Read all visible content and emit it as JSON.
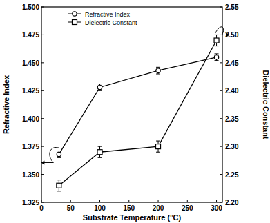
{
  "chart_data": {
    "type": "line",
    "x_label": "Substrate Temperature (°C)",
    "y_label": "Refractive Index",
    "y2_label": "Dielectric Constant",
    "x": [
      30,
      100,
      200,
      300
    ],
    "xlim": [
      0,
      310
    ],
    "xticks": [
      0,
      50,
      100,
      150,
      200,
      250,
      300
    ],
    "ylim": [
      1.325,
      1.5
    ],
    "yticks": [
      1.325,
      {
        "value": 1.35,
        "label": "1.350"
      },
      1.375,
      {
        "value": 1.4,
        "label": "1.400"
      },
      1.425,
      {
        "value": 1.45,
        "label": "1.450"
      },
      1.475,
      {
        "value": 1.5,
        "label": "1.500"
      }
    ],
    "y2lim": [
      2.2,
      2.55
    ],
    "y2ticks": [
      {
        "value": 2.2,
        "label": "2.20"
      },
      2.25,
      {
        "value": 2.3,
        "label": "2.30"
      },
      2.35,
      {
        "value": 2.4,
        "label": "2.40"
      },
      2.45,
      {
        "value": 2.5,
        "label": "2.50"
      },
      2.55
    ],
    "legend": "upper left",
    "series": [
      {
        "name": "Refractive Index",
        "color": "#000000",
        "marker": "circle",
        "line_style": "solid",
        "values": [
          1.368,
          1.428,
          1.443,
          1.455
        ],
        "errors": [
          0.003,
          0.003,
          0.003,
          0.003
        ]
      },
      {
        "name": "Dielectric Constant",
        "color": "#000000",
        "marker": "square",
        "line_style": "solid",
        "axis": "y2",
        "values": [
          2.23,
          2.29,
          2.3,
          2.49
        ],
        "errors": [
          0.01,
          0.01,
          0.01,
          0.01
        ]
      }
    ]
  }
}
